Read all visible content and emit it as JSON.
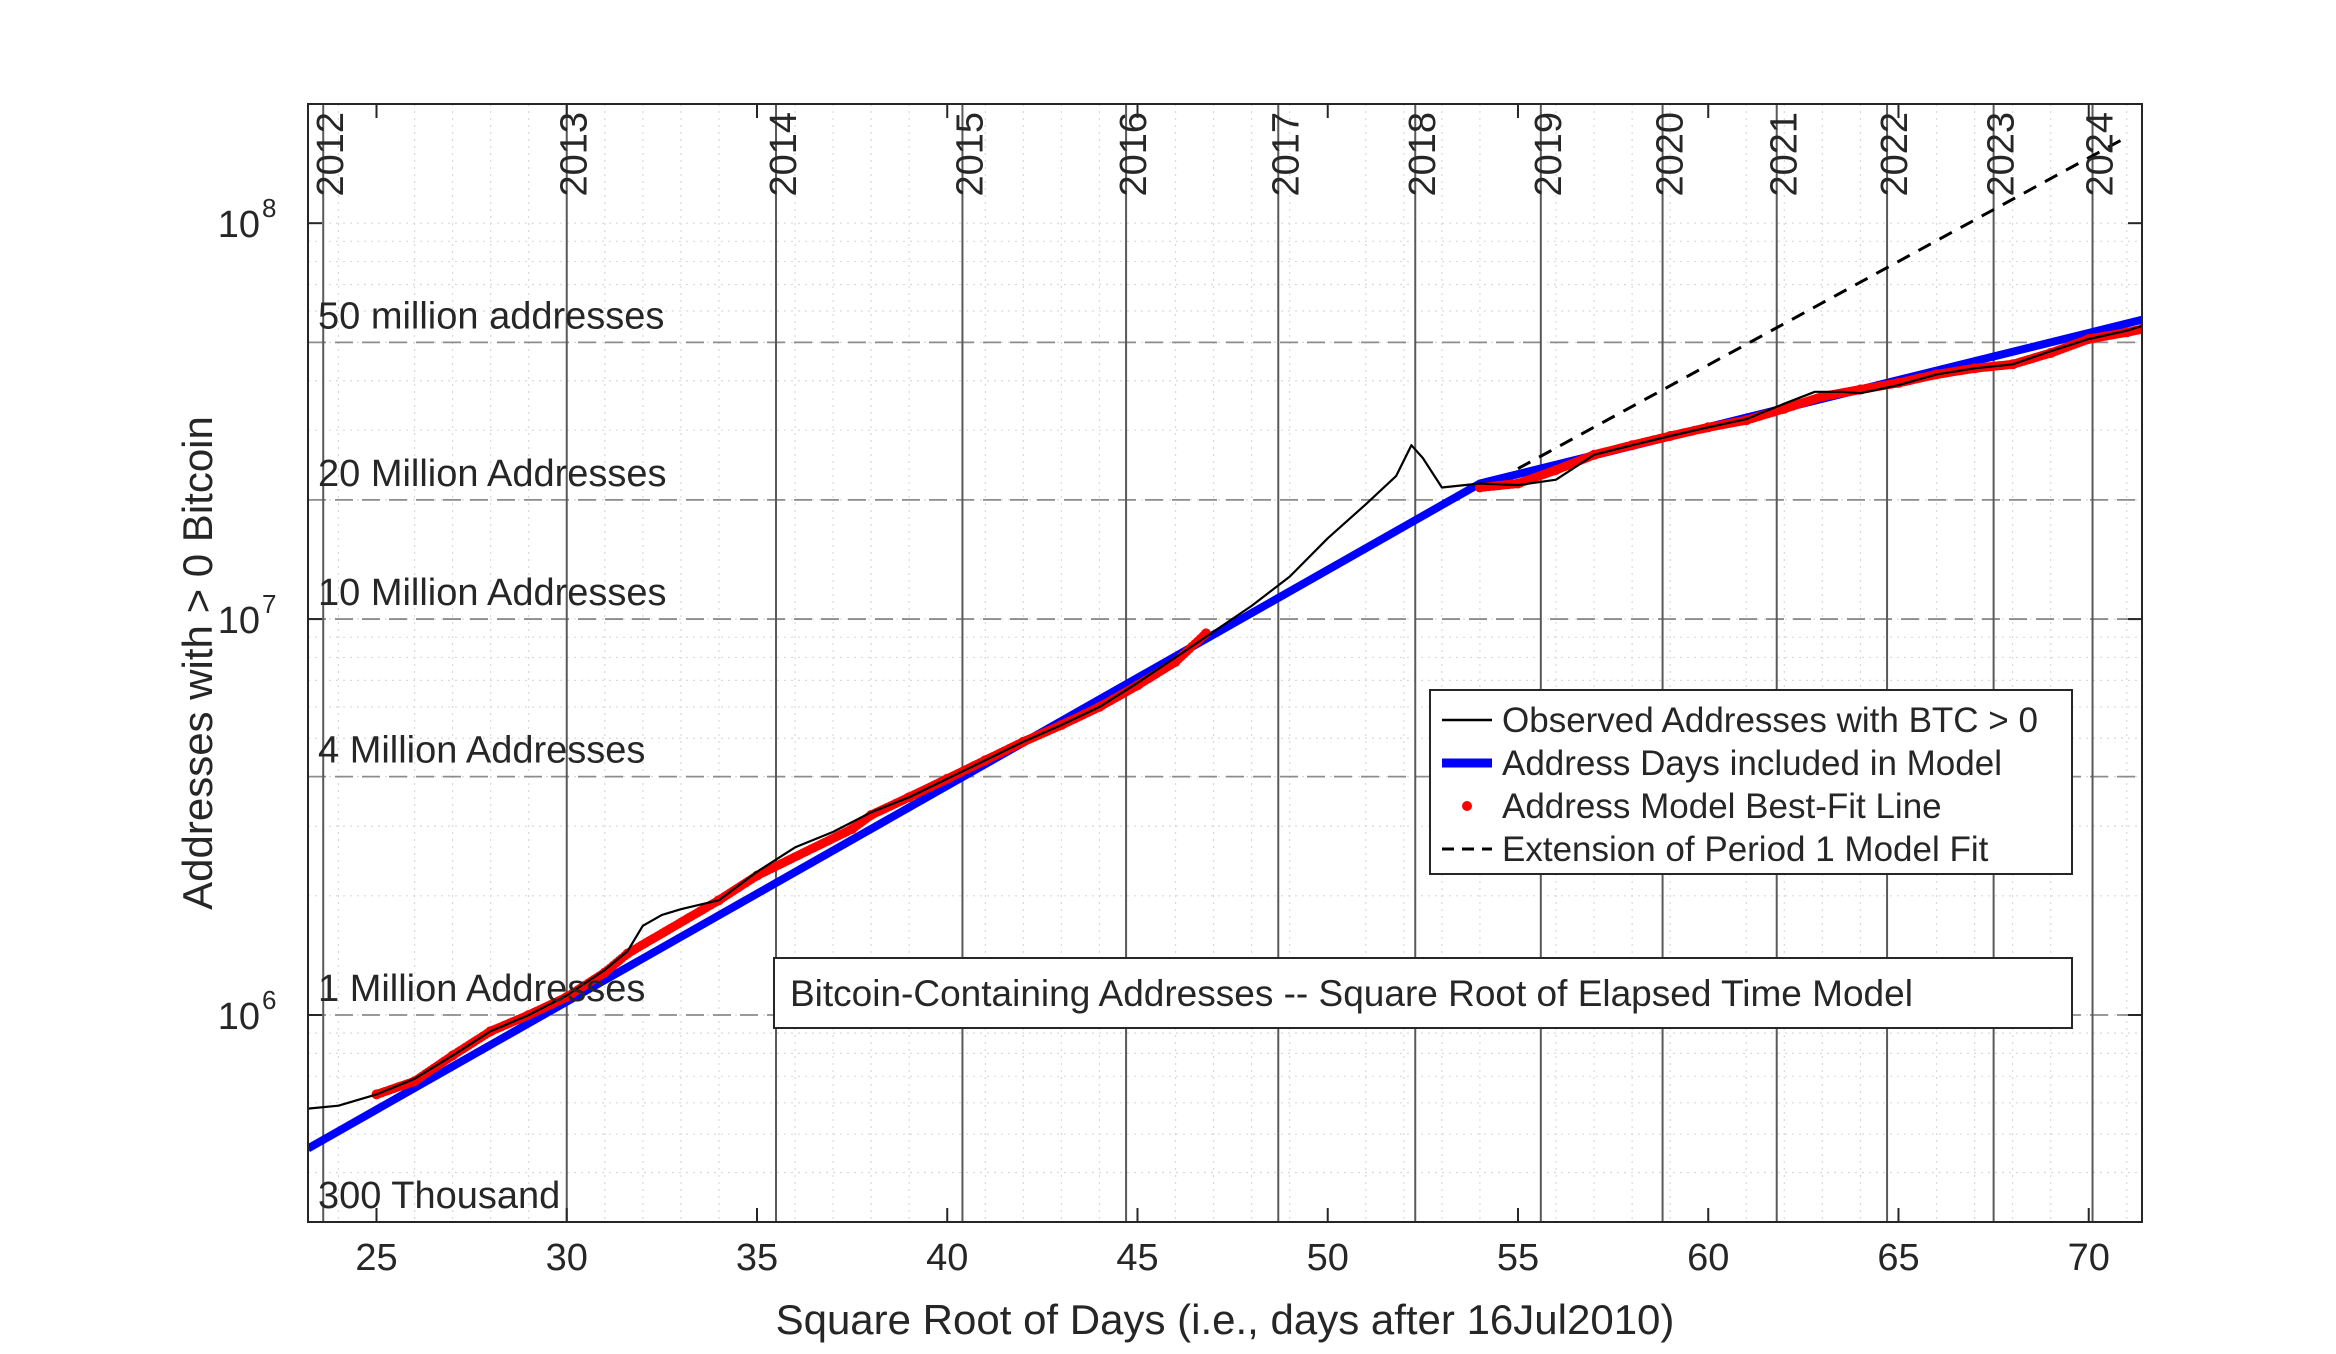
{
  "chart_data": {
    "type": "line",
    "title": "",
    "xlabel": "Square Root of Days (i.e., days after 16Jul2010)",
    "ylabel": "Addresses with > 0 Bitcoin",
    "xlim": [
      23.2,
      71.4
    ],
    "ylim": [
      300000,
      200000000
    ],
    "yscale": "log",
    "grid": true,
    "legend_position": "center-right",
    "x_ticks": [
      {
        "value": 25,
        "label": "25"
      },
      {
        "value": 30,
        "label": "30"
      },
      {
        "value": 35,
        "label": "35"
      },
      {
        "value": 40,
        "label": "40"
      },
      {
        "value": 45,
        "label": "45"
      },
      {
        "value": 50,
        "label": "50"
      },
      {
        "value": 55,
        "label": "55"
      },
      {
        "value": 60,
        "label": "60"
      },
      {
        "value": 65,
        "label": "65"
      },
      {
        "value": 70,
        "label": "70"
      }
    ],
    "y_ticks": [
      {
        "value": 1000000,
        "base": "10",
        "exp": "6"
      },
      {
        "value": 10000000,
        "base": "10",
        "exp": "7"
      },
      {
        "value": 100000000,
        "base": "10",
        "exp": "8"
      }
    ],
    "year_markers": [
      {
        "x": 23.6,
        "label": "2012"
      },
      {
        "x": 30.0,
        "label": "2013"
      },
      {
        "x": 35.5,
        "label": "2014"
      },
      {
        "x": 40.4,
        "label": "2015"
      },
      {
        "x": 44.7,
        "label": "2016"
      },
      {
        "x": 48.7,
        "label": "2017"
      },
      {
        "x": 52.3,
        "label": "2018"
      },
      {
        "x": 55.6,
        "label": "2019"
      },
      {
        "x": 58.8,
        "label": "2020"
      },
      {
        "x": 61.8,
        "label": "2021"
      },
      {
        "x": 64.7,
        "label": "2022"
      },
      {
        "x": 67.5,
        "label": "2023"
      },
      {
        "x": 70.1,
        "label": "2024"
      }
    ],
    "reference_lines": [
      {
        "y": 300000,
        "label": "300 Thousand"
      },
      {
        "y": 1000000,
        "label": "1 Million Addresses"
      },
      {
        "y": 4000000,
        "label": "4 Million Addresses"
      },
      {
        "y": 10000000,
        "label": "10 Million Addresses"
      },
      {
        "y": 20000000,
        "label": "20 Million Addresses"
      },
      {
        "y": 50000000,
        "label": "50 million addresses"
      }
    ],
    "series": [
      {
        "name": "Observed Addresses with BTC > 0",
        "color": "#000000",
        "style": "solid-thin",
        "x": [
          23.2,
          24.0,
          25.0,
          26.0,
          27.0,
          28.0,
          29.0,
          30.0,
          31.0,
          31.6,
          32.0,
          32.5,
          33.0,
          34.0,
          35.0,
          36.0,
          37.0,
          38.0,
          39.0,
          40.0,
          41.0,
          42.0,
          43.0,
          44.0,
          45.0,
          46.0,
          47.0,
          48.0,
          49.0,
          50.0,
          51.0,
          51.8,
          52.2,
          52.5,
          53.0,
          54.0,
          55.0,
          56.0,
          57.0,
          58.0,
          59.0,
          60.0,
          61.0,
          62.0,
          62.8,
          63.5,
          64.0,
          65.0,
          66.0,
          67.0,
          68.0,
          69.0,
          70.0,
          71.0,
          71.4
        ],
        "y": [
          580000,
          590000,
          630000,
          690000,
          790000,
          910000,
          1000000,
          1120000,
          1300000,
          1450000,
          1680000,
          1790000,
          1850000,
          1950000,
          2300000,
          2650000,
          2900000,
          3250000,
          3550000,
          3950000,
          4400000,
          4900000,
          5400000,
          6000000,
          6900000,
          8000000,
          9300000,
          10800000,
          12800000,
          16000000,
          19500000,
          23000000,
          27500000,
          25500000,
          21500000,
          22000000,
          21800000,
          22500000,
          26000000,
          27500000,
          29000000,
          30500000,
          32000000,
          35000000,
          37500000,
          37500000,
          37200000,
          39000000,
          41500000,
          43000000,
          44000000,
          47500000,
          51000000,
          53500000,
          55000000
        ]
      },
      {
        "name": "Address Days included in Model",
        "color": "#0000ff",
        "style": "solid-thick",
        "x": [
          23.2,
          54.0,
          71.4
        ],
        "y": [
          460000,
          22000000,
          57000000
        ]
      },
      {
        "name": "Address Model Best-Fit Line",
        "color": "#ff0000",
        "style": "dots",
        "x": [
          25.0,
          26.0,
          27.0,
          28.0,
          29.0,
          30.0,
          31.0,
          31.6,
          34.0,
          35.0,
          37.5,
          38.0,
          39.0,
          40.0,
          41.0,
          42.0,
          43.0,
          44.0,
          45.0,
          46.0,
          46.8,
          54.0,
          55.0,
          56.0,
          57.0,
          58.0,
          59.0,
          60.0,
          61.0,
          62.0,
          63.0,
          64.0,
          65.0,
          66.0,
          67.0,
          68.0,
          69.0,
          70.0,
          71.0,
          71.4
        ],
        "y": [
          630000,
          680000,
          790000,
          910000,
          1000000,
          1110000,
          1280000,
          1430000,
          1950000,
          2250000,
          2950000,
          3200000,
          3550000,
          3950000,
          4400000,
          4900000,
          5400000,
          6000000,
          6800000,
          7800000,
          9200000,
          21500000,
          22000000,
          23800000,
          26000000,
          27500000,
          29000000,
          30500000,
          31800000,
          34000000,
          36500000,
          38000000,
          39500000,
          41500000,
          43000000,
          44000000,
          47000000,
          51000000,
          53000000,
          54000000
        ]
      },
      {
        "name": "Extension of Period 1 Model Fit",
        "color": "#000000",
        "style": "dashed",
        "x": [
          55.0,
          71.0
        ],
        "y": [
          24000000,
          165000000
        ]
      }
    ],
    "annotation": "Bitcoin-Containing Addresses -- Square Root of Elapsed Time Model"
  }
}
